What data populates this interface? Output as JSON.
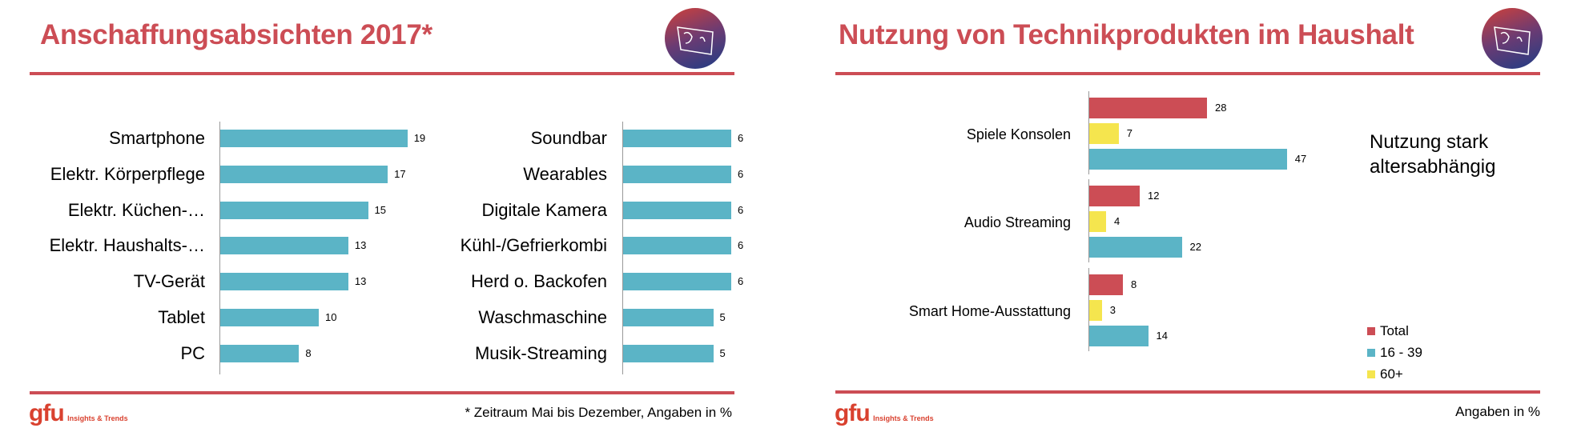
{
  "slides": [
    {
      "title": "Anschaffungsabsichten 2017*",
      "footnote": "* Zeitraum Mai bis Dezember, Angaben in %",
      "logo_text": "gfu",
      "logo_subtitle": "Insights & Trends"
    },
    {
      "title": "Nutzung von Technikprodukten im Haushalt",
      "side_note_line1": "Nutzung stark",
      "side_note_line2": "altersabhängig",
      "footnote": "Angaben in %",
      "logo_text": "gfu",
      "logo_subtitle": "Insights & Trends"
    }
  ],
  "colors": {
    "accent": "#cc4d55",
    "teal": "#5bb4c6",
    "red": "#cc4d55",
    "yellow": "#f5e54e"
  },
  "chart_data": [
    {
      "type": "bar",
      "orientation": "horizontal",
      "categories": [
        "Smartphone",
        "Elektr. Körperpflege",
        "Elektr. Küchen-…",
        "Elektr. Haushalts-…",
        "TV-Gerät",
        "Tablet",
        "PC"
      ],
      "values": [
        19,
        17,
        15,
        13,
        13,
        10,
        8
      ],
      "color": "#5bb4c6"
    },
    {
      "type": "bar",
      "orientation": "horizontal",
      "categories": [
        "Soundbar",
        "Wearables",
        "Digitale Kamera",
        "Kühl-/Gefrierkombi",
        "Herd o. Backofen",
        "Waschmaschine",
        "Musik-Streaming"
      ],
      "values": [
        6,
        6,
        6,
        6,
        6,
        5,
        5
      ],
      "color": "#5bb4c6"
    },
    {
      "type": "bar",
      "orientation": "horizontal",
      "grouped": true,
      "categories": [
        "Spiele Konsolen",
        "Audio Streaming",
        "Smart Home-Ausstattung"
      ],
      "series": [
        {
          "name": "Total",
          "values": [
            28,
            12,
            8
          ],
          "color": "#cc4d55"
        },
        {
          "name": "60+",
          "values": [
            7,
            4,
            3
          ],
          "color": "#f5e54e"
        },
        {
          "name": "16 - 39",
          "values": [
            47,
            22,
            14
          ],
          "color": "#5bb4c6"
        }
      ],
      "legend_order": [
        "Total",
        "16 - 39",
        "60+"
      ],
      "legend_position": "bottom-right"
    }
  ]
}
